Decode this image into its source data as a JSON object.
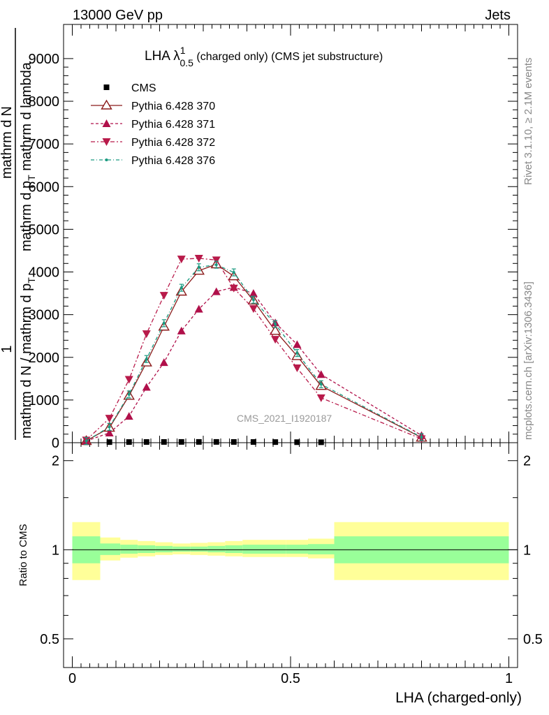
{
  "header": {
    "left": "13000 GeV pp",
    "right": "Jets"
  },
  "side": {
    "rivet": "Rivet 3.1.10, ≥ 2.1M events",
    "mcplots": "mcplots.cern.ch [arXiv:1306.3436]"
  },
  "main": {
    "title_main": "LHA λ",
    "title_sup": "1",
    "title_sub": "0.5",
    "title_rest": " (charged only) (CMS jet substructure)",
    "watermark": "CMS_2021_I1920187",
    "ylabel_num": "1",
    "ylabel_den": "mathrm d N / mathrm d p",
    "ylabel_den_sub": "T",
    "ylabel_overlay_num": "mathrm d",
    "ylabel_overlay_num2": "N",
    "ylabel_overlay_den": "mathrm d p",
    "ylabel_overlay_den_sub": "T",
    "ylabel_overlay_den_rest": " mathrm d lambda",
    "yticks": [
      "0",
      "1000",
      "2000",
      "3000",
      "4000",
      "5000",
      "6000",
      "7000",
      "8000",
      "9000"
    ]
  },
  "ratio": {
    "ylabel": "Ratio to CMS",
    "ytick_labels": [
      "0.5",
      "1",
      "2"
    ],
    "xlabel": "LHA (charged-only)",
    "xtick_labels": [
      "0",
      "0.5",
      "1"
    ]
  },
  "legend": [
    {
      "key": "cms",
      "label": "CMS"
    },
    {
      "key": "p370",
      "label": "Pythia 6.428 370"
    },
    {
      "key": "p371",
      "label": "Pythia 6.428 371"
    },
    {
      "key": "p372",
      "label": "Pythia 6.428 372"
    },
    {
      "key": "p376",
      "label": "Pythia 6.428 376"
    }
  ],
  "colors": {
    "cms": "#000000",
    "p370": "#8b1a1a",
    "p371": "#b0104a",
    "p372": "#b81a4a",
    "p376": "#1a9a80",
    "band_inner": "#99ff99",
    "band_outer": "#ffff99"
  },
  "chart_data": {
    "type": "line",
    "xlim": [
      -0.02,
      1.02
    ],
    "ylim": [
      0,
      9800
    ],
    "ratio_ylim_log": [
      0.4,
      2.3
    ],
    "x": [
      0.032,
      0.085,
      0.13,
      0.17,
      0.21,
      0.25,
      0.29,
      0.33,
      0.37,
      0.415,
      0.465,
      0.515,
      0.57,
      0.8
    ],
    "series": [
      {
        "key": "cms",
        "name": "CMS",
        "marker": "square",
        "values": [
          12,
          14,
          15,
          16,
          17,
          18,
          18,
          18,
          17,
          16,
          14,
          12,
          10,
          null
        ]
      },
      {
        "key": "p370",
        "name": "Pythia 6.428 370",
        "marker": "triangle-up-open",
        "values": [
          40,
          350,
          1100,
          1880,
          2720,
          3540,
          4030,
          4180,
          3900,
          3330,
          2620,
          2030,
          1330,
          120
        ]
      },
      {
        "key": "p371",
        "name": "Pythia 6.428 371",
        "marker": "triangle-up",
        "values": [
          40,
          230,
          620,
          1300,
          1880,
          2620,
          3130,
          3540,
          3640,
          3500,
          2810,
          2300,
          1600,
          170
        ]
      },
      {
        "key": "p372",
        "name": "Pythia 6.428 372",
        "marker": "triangle-down",
        "values": [
          60,
          570,
          1480,
          2550,
          3450,
          4300,
          4320,
          4280,
          3620,
          3140,
          2420,
          1750,
          1050,
          90
        ]
      },
      {
        "key": "p376",
        "name": "Pythia 6.428 376",
        "marker": "dot",
        "values": [
          40,
          370,
          1130,
          1960,
          2800,
          3630,
          4110,
          4170,
          3990,
          3350,
          2780,
          2100,
          1370,
          130
        ]
      }
    ],
    "ratio_band": {
      "edges": [
        0.0,
        0.064,
        0.11,
        0.15,
        0.19,
        0.23,
        0.27,
        0.31,
        0.35,
        0.39,
        0.44,
        0.49,
        0.54,
        0.6,
        1.0
      ],
      "inner_lo": [
        0.9,
        0.96,
        0.97,
        0.975,
        0.98,
        0.985,
        0.985,
        0.98,
        0.975,
        0.97,
        0.97,
        0.97,
        0.965,
        0.9
      ],
      "inner_hi": [
        1.11,
        1.05,
        1.04,
        1.035,
        1.03,
        1.025,
        1.025,
        1.03,
        1.035,
        1.04,
        1.04,
        1.04,
        1.045,
        1.11
      ],
      "outer_lo": [
        0.79,
        0.92,
        0.94,
        0.95,
        0.96,
        0.965,
        0.96,
        0.955,
        0.95,
        0.945,
        0.945,
        0.945,
        0.935,
        0.79
      ],
      "outer_hi": [
        1.24,
        1.1,
        1.08,
        1.07,
        1.06,
        1.05,
        1.055,
        1.06,
        1.07,
        1.08,
        1.08,
        1.08,
        1.09,
        1.24
      ]
    }
  }
}
